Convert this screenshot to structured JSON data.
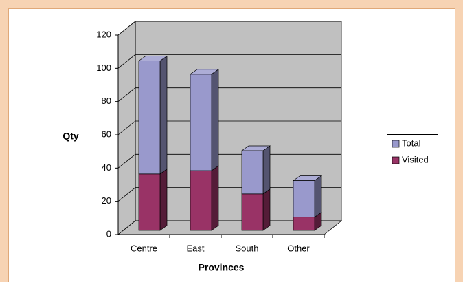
{
  "chart_data": {
    "type": "bar3d_stacked",
    "categories": [
      "Centre",
      "East",
      "South",
      "Other"
    ],
    "series": [
      {
        "name": "Visited",
        "color": "#993366",
        "values": [
          34,
          36,
          22,
          8
        ]
      },
      {
        "name": "Total",
        "color": "#9999cc",
        "values": [
          68,
          58,
          26,
          22
        ]
      }
    ],
    "ylabel": "Qty",
    "xlabel": "Provinces",
    "ylim": [
      0,
      120
    ],
    "yticks": [
      0,
      20,
      40,
      60,
      80,
      100,
      120
    ],
    "grid": true,
    "legend": "right"
  }
}
